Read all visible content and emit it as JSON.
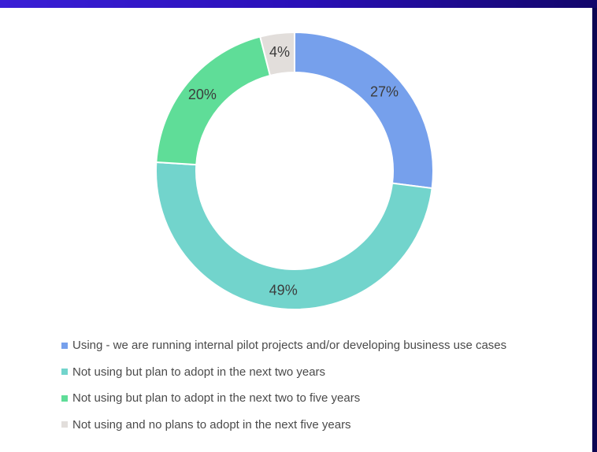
{
  "chart_data": {
    "type": "pie",
    "donut": true,
    "values": [
      27,
      49,
      20,
      4
    ],
    "labels": [
      "27%",
      "49%",
      "20%",
      "4%"
    ],
    "series": [
      {
        "name": "Using - we are running internal pilot projects and/or developing business use cases",
        "value": 27,
        "color": "#76a0ec"
      },
      {
        "name": "Not using but plan to adopt in the next two years",
        "value": 49,
        "color": "#72d4cc"
      },
      {
        "name": "Not using but plan to adopt in the next two to five years",
        "value": 20,
        "color": "#5fdd98"
      },
      {
        "name": "Not using and no plans to adopt in the next five years",
        "value": 4,
        "color": "#e2dedb"
      }
    ],
    "legend_position": "bottom"
  }
}
